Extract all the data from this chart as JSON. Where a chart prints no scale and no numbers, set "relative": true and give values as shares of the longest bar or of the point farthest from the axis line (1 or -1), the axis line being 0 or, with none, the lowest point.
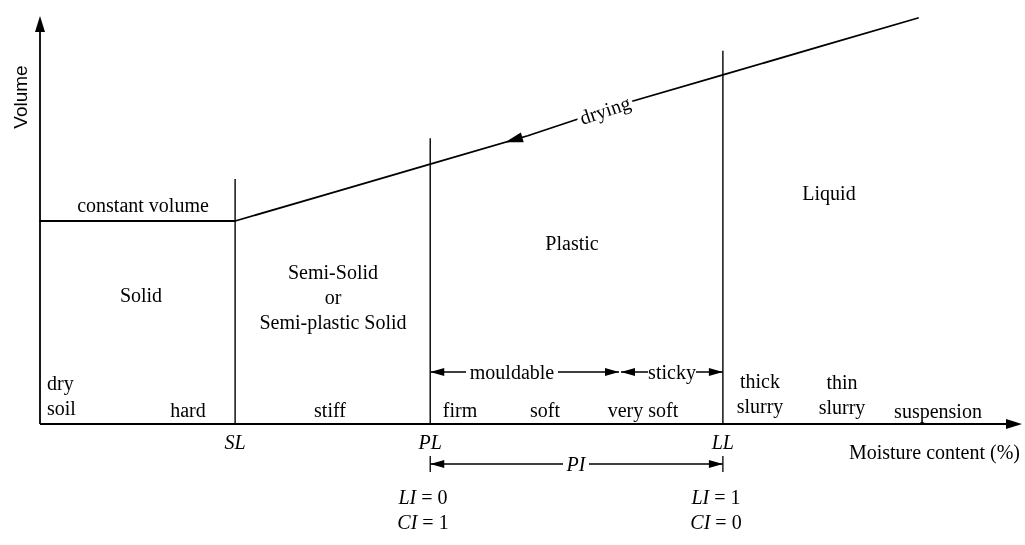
{
  "chart_data": {
    "type": "line",
    "relative": true,
    "xlabel": "Moisture content (%)",
    "ylabel": "Volume",
    "categories": [
      null,
      null,
      "SL",
      null,
      "PL",
      null,
      null,
      "LL",
      null,
      null
    ],
    "values": [
      0.5,
      0.5,
      0.5,
      0.57,
      0.64,
      0.71,
      0.79,
      0.86,
      0.93,
      1
    ],
    "color": "#000000",
    "ref_lines": [
      {
        "axis": "x",
        "value": "SL"
      },
      {
        "axis": "x",
        "value": "PL"
      },
      {
        "axis": "x",
        "value": "LL"
      }
    ],
    "annotations": [
      "constant volume",
      "drying",
      "Liquid",
      "Plastic",
      "Solid",
      "Semi-Solid\nor\nSemi-plastic Solid",
      "mouldable",
      "sticky",
      "dry\nsoil",
      "hard",
      "stiff",
      "firm",
      "soft",
      "very soft",
      "thick\nslurry",
      "thin\nslurry",
      "suspension",
      "PI",
      "LI = 0\nCI = 1",
      "LI = 1\nCI = 0"
    ]
  }
}
